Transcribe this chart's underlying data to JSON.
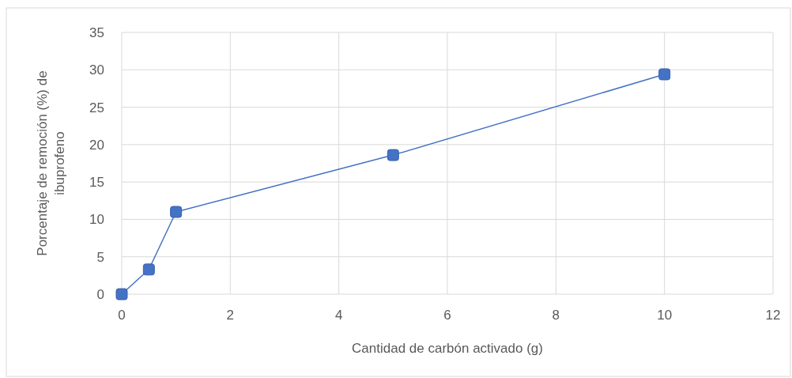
{
  "chart_data": {
    "type": "line",
    "xlabel": "Cantidad de carbón activado (g)",
    "ylabel": "Porcentaje de remoción (%) de ibuprofeno",
    "x": [
      0,
      0.5,
      1,
      5,
      10
    ],
    "series": [
      {
        "color": "#4472c4",
        "values": [
          0,
          3.3,
          11,
          18.6,
          29.4
        ]
      }
    ],
    "xlim": [
      0,
      12
    ],
    "xticks": [
      0,
      2,
      4,
      6,
      8,
      10,
      12
    ],
    "ylim": [
      0,
      35
    ],
    "yticks": [
      0,
      5,
      10,
      15,
      20,
      25,
      30,
      35
    ],
    "grid": true,
    "marker": "square",
    "line_style": "solid"
  }
}
